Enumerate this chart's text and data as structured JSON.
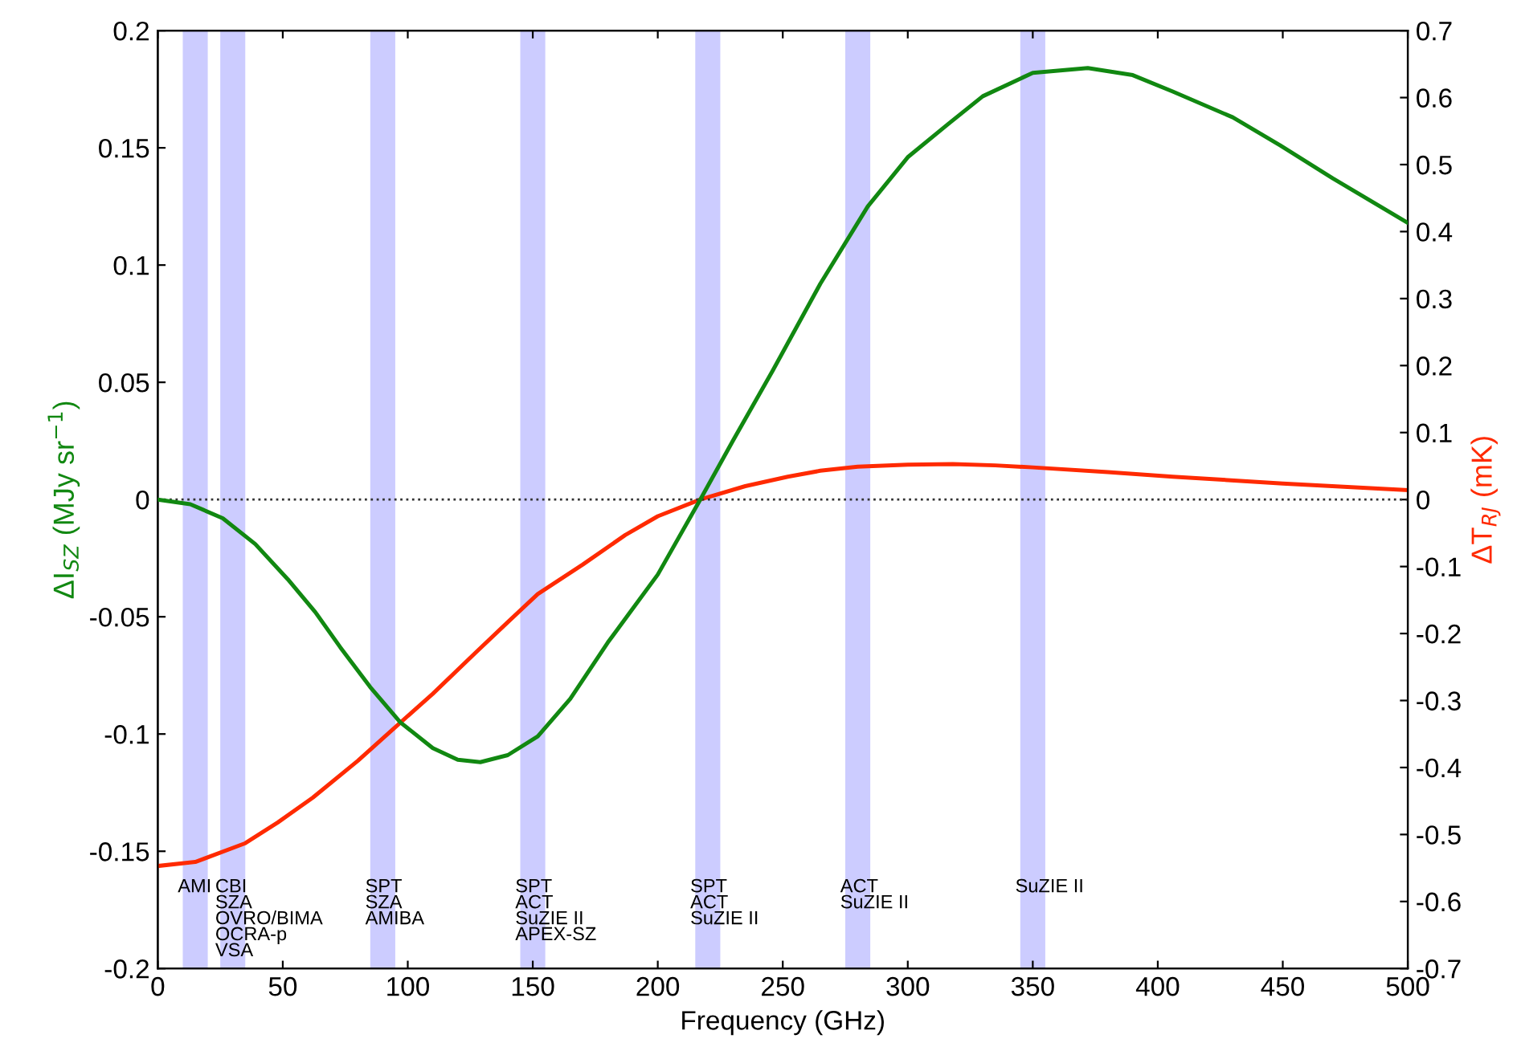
{
  "chart_data": {
    "type": "line",
    "xlabel": "Frequency (GHz)",
    "ylabel": "ΔI$_{SZ}$ (MJy sr$^{−1}$)",
    "y2label": "ΔT$_{RJ}$ (mK)",
    "xlim": [
      0,
      500
    ],
    "xticks": [
      0,
      50,
      100,
      150,
      200,
      250,
      300,
      350,
      400,
      450,
      500
    ],
    "ylim": [
      -0.2,
      0.2
    ],
    "yticks": [
      -0.2,
      -0.15,
      -0.1,
      -0.05,
      0,
      0.05,
      0.1,
      0.15,
      0.2
    ],
    "y2lim": [
      -0.7,
      0.7
    ],
    "y2ticks": [
      -0.7,
      -0.6,
      -0.5,
      -0.4,
      -0.3,
      -0.2,
      -0.1,
      0,
      0.1,
      0.2,
      0.3,
      0.4,
      0.5,
      0.6,
      0.7
    ],
    "grid": false,
    "legend": false,
    "line_style": "solid",
    "marker": "none",
    "series": [
      {
        "color": "#118811",
        "x": [
          0,
          13,
          26,
          39,
          52,
          63,
          73,
          85,
          97,
          110,
          120,
          129,
          140,
          152,
          165,
          180,
          200,
          217,
          230,
          246,
          265,
          284,
          300,
          316,
          330,
          350,
          372,
          390,
          406,
          430,
          449,
          470,
          500
        ],
        "values": [
          0,
          -0.002,
          -0.008,
          -0.019,
          -0.034,
          -0.048,
          -0.063,
          -0.08,
          -0.095,
          -0.106,
          -0.111,
          -0.112,
          -0.109,
          -0.101,
          -0.085,
          -0.061,
          -0.032,
          0,
          0.025,
          0.055,
          0.092,
          0.125,
          0.146,
          0.16,
          0.172,
          0.182,
          0.184,
          0.181,
          0.174,
          0.163,
          0.151,
          0.137,
          0.118
        ]
      },
      {
        "color": "#ff2a00",
        "axis": "y2",
        "x": [
          0,
          15,
          35,
          48,
          62,
          80,
          97,
          110,
          127,
          140,
          152,
          170,
          187,
          200,
          217,
          235,
          252,
          265,
          280,
          300,
          318,
          335,
          350,
          380,
          406,
          450,
          500
        ],
        "values": [
          -0.547,
          -0.541,
          -0.513,
          -0.482,
          -0.445,
          -0.39,
          -0.333,
          -0.29,
          -0.229,
          -0.183,
          -0.141,
          -0.097,
          -0.053,
          -0.025,
          0,
          0.02,
          0.034,
          0.043,
          0.049,
          0.052,
          0.053,
          0.051,
          0.048,
          0.041,
          0.034,
          0.024,
          0.014
        ]
      }
    ],
    "ref_lines": [
      {
        "axis": "y",
        "value": 0,
        "color": "#333333",
        "line_style": "dotted"
      }
    ],
    "bands": [
      {
        "axis": "x",
        "from": 10,
        "to": 20,
        "label": "AMI",
        "color": "#ccccff"
      },
      {
        "axis": "x",
        "from": 25,
        "to": 35,
        "label": "CBI\nSZA\nOVRO/BIMA\nOCRA-p\nVSA",
        "color": "#ccccff"
      },
      {
        "axis": "x",
        "from": 85,
        "to": 95,
        "label": "SPT\nSZA\nAMIBA",
        "color": "#ccccff"
      },
      {
        "axis": "x",
        "from": 145,
        "to": 155,
        "label": "SPT\nACT\nSuZIE II\nAPEX-SZ",
        "color": "#ccccff"
      },
      {
        "axis": "x",
        "from": 215,
        "to": 225,
        "label": "SPT\nACT\nSuZIE II",
        "color": "#ccccff"
      },
      {
        "axis": "x",
        "from": 275,
        "to": 285,
        "label": "ACT\nSuZIE II",
        "color": "#ccccff"
      },
      {
        "axis": "x",
        "from": 345,
        "to": 355,
        "label": "SuZIE II",
        "color": "#ccccff"
      }
    ]
  }
}
